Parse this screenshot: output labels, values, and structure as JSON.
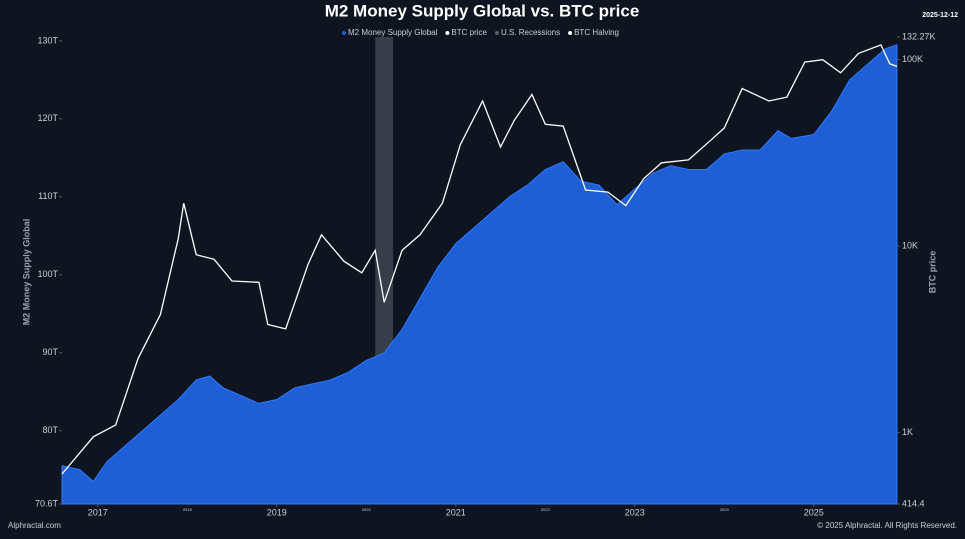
{
  "chart_data": {
    "type": "area-line",
    "title": "M2 Money Supply Global vs. BTC price",
    "date": "2025-12-12",
    "source": "Alphractal.com",
    "copyright": "© 2025 Alphractal. All Rights Reserved.",
    "watermark": "Alphractal",
    "y_label": "M2 Money Supply Global",
    "y2_label": "BTC price",
    "xlim": [
      2016.6,
      2025.93
    ],
    "xticks": [
      2017,
      2019,
      2021,
      2023,
      2025
    ],
    "minor_xticks": [
      2018,
      2020,
      2022,
      2024
    ],
    "ylim": [
      70.6,
      130.5
    ],
    "yticks": [
      {
        "value": 70.6,
        "label": "70.6T"
      },
      {
        "value": 80,
        "label": "80T"
      },
      {
        "value": 90,
        "label": "90T"
      },
      {
        "value": 100,
        "label": "100T"
      },
      {
        "value": 110,
        "label": "110T"
      },
      {
        "value": 120,
        "label": "120T"
      },
      {
        "value": 130,
        "label": "130T"
      }
    ],
    "y2lim": [
      414.4,
      132270
    ],
    "y2log": true,
    "y2ticks": [
      414.4,
      {
        "value": 1000,
        "label": "1K"
      },
      {
        "value": 10000,
        "label": "10K"
      },
      {
        "value": 100000,
        "label": "100K"
      },
      {
        "value": 132270,
        "label": "132.27K"
      }
    ],
    "series": [
      {
        "name": "M2 Money Supply Global",
        "color": "#1f5fd6",
        "style": "area",
        "x": [
          2016.6,
          2016.8,
          2016.95,
          2017.1,
          2017.3,
          2017.5,
          2017.7,
          2017.9,
          2018.1,
          2018.25,
          2018.4,
          2018.6,
          2018.8,
          2019.0,
          2019.2,
          2019.4,
          2019.6,
          2019.8,
          2020.0,
          2020.2,
          2020.4,
          2020.6,
          2020.8,
          2021.0,
          2021.2,
          2021.4,
          2021.6,
          2021.8,
          2022.0,
          2022.2,
          2022.4,
          2022.6,
          2022.8,
          2023.0,
          2023.2,
          2023.4,
          2023.6,
          2023.8,
          2024.0,
          2024.2,
          2024.4,
          2024.6,
          2024.75,
          2025.0,
          2025.2,
          2025.4,
          2025.6,
          2025.8,
          2025.93
        ],
        "values": [
          75.5,
          75,
          73.5,
          76,
          78,
          80,
          82,
          84,
          86.5,
          87,
          85.5,
          84.5,
          83.5,
          84,
          85.5,
          86,
          86.5,
          87.5,
          89,
          90,
          93,
          97,
          101,
          104,
          106,
          108,
          110,
          111.5,
          113.5,
          114.5,
          112,
          111.5,
          109,
          111,
          113,
          114,
          113.5,
          113.5,
          115.5,
          116,
          116,
          118.5,
          117.5,
          118,
          121,
          125,
          127,
          129,
          129.5
        ]
      },
      {
        "name": "BTC price",
        "color": "#ffffff",
        "style": "line",
        "axis": "y2",
        "x": [
          2016.6,
          2016.95,
          2017.2,
          2017.45,
          2017.7,
          2017.9,
          2017.96,
          2018.1,
          2018.3,
          2018.5,
          2018.8,
          2018.9,
          2019.1,
          2019.35,
          2019.5,
          2019.75,
          2019.95,
          2020.1,
          2020.2,
          2020.4,
          2020.6,
          2020.85,
          2021.05,
          2021.3,
          2021.5,
          2021.65,
          2021.85,
          2022.0,
          2022.2,
          2022.45,
          2022.7,
          2022.9,
          2023.1,
          2023.3,
          2023.6,
          2023.85,
          2024.0,
          2024.2,
          2024.5,
          2024.7,
          2024.9,
          2025.1,
          2025.3,
          2025.5,
          2025.75,
          2025.85,
          2025.93
        ],
        "values": [
          600,
          950,
          1100,
          2500,
          4300,
          11000,
          17000,
          9000,
          8500,
          6500,
          6400,
          3800,
          3600,
          8000,
          11500,
          8300,
          7200,
          9500,
          5000,
          9500,
          11500,
          17000,
          35000,
          60000,
          34000,
          47000,
          65000,
          45000,
          44000,
          20000,
          19500,
          16500,
          23000,
          28000,
          29000,
          37000,
          43000,
          70000,
          60000,
          63000,
          97000,
          100000,
          85000,
          108000,
          120000,
          95000,
          92000
        ]
      }
    ],
    "recessions": {
      "name": "U.S. Recessions",
      "color": "#5a5f6b",
      "ranges": [
        [
          2020.1,
          2020.3
        ]
      ]
    },
    "halving": {
      "name": "BTC Halving",
      "color": "#ffffff"
    }
  }
}
